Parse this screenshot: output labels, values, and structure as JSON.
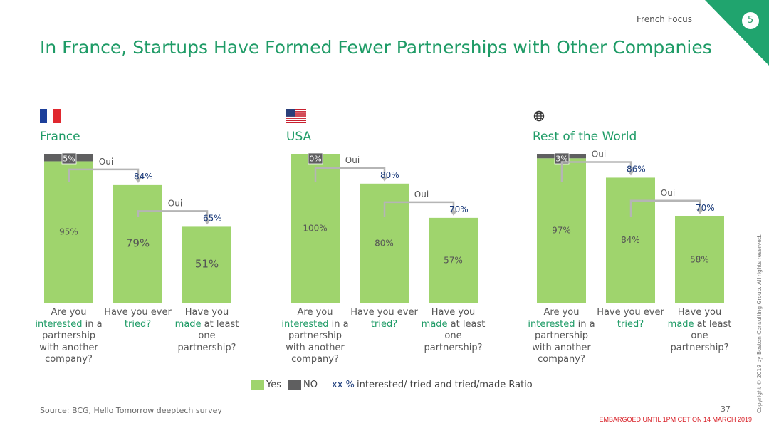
{
  "header": {
    "section": "French Focus",
    "page_badge": "5"
  },
  "title": "In France, Startups Have Formed Fewer Partnerships with Other Companies",
  "chart_data": [
    {
      "type": "bar",
      "region": "France",
      "flag": "france-flag",
      "categories": [
        "Are you interested in a partnership with another company?",
        "Have you ever tried?",
        "Have you made at least one partnership?"
      ],
      "series": [
        {
          "name": "Yes",
          "values": [
            95,
            79,
            51
          ]
        },
        {
          "name": "NO",
          "values": [
            5,
            0,
            0
          ]
        }
      ],
      "ratios": [
        84,
        65
      ],
      "ratio_prefix": "Oui",
      "value_labels": [
        "95%",
        "79%",
        "51%"
      ],
      "no_label": "5%",
      "ratio_labels": [
        "84%",
        "65%"
      ],
      "ylim": [
        0,
        100
      ]
    },
    {
      "type": "bar",
      "region": "USA",
      "flag": "usa-flag",
      "categories": [
        "Are you interested in a partnership with another company?",
        "Have you ever tried?",
        "Have you made at least one partnership?"
      ],
      "series": [
        {
          "name": "Yes",
          "values": [
            100,
            80,
            57
          ]
        },
        {
          "name": "NO",
          "values": [
            0,
            0,
            0
          ]
        }
      ],
      "ratios": [
        80,
        70
      ],
      "ratio_prefix": "Oui",
      "value_labels": [
        "100%",
        "80%",
        "57%"
      ],
      "no_label": "0%",
      "ratio_labels": [
        "80%",
        "70%"
      ],
      "ylim": [
        0,
        100
      ]
    },
    {
      "type": "bar",
      "region": "Rest of the World",
      "flag": "globe-icon",
      "categories": [
        "Are you interested in a partnership with another company?",
        "Have you ever tried?",
        "Have you made at least one partnership?"
      ],
      "series": [
        {
          "name": "Yes",
          "values": [
            97,
            84,
            58
          ]
        },
        {
          "name": "NO",
          "values": [
            3,
            0,
            0
          ]
        }
      ],
      "ratios": [
        86,
        70
      ],
      "ratio_prefix": "Oui",
      "value_labels": [
        "97%",
        "84%",
        "58%"
      ],
      "no_label": "3%",
      "ratio_labels": [
        "86%",
        "70%"
      ],
      "ylim": [
        0,
        100
      ]
    }
  ],
  "questions": {
    "q1": {
      "pre": "Are you",
      "hl": "interested",
      "post": "in a partnership with another company?"
    },
    "q2": {
      "pre": "Have you ever",
      "hl": "tried?",
      "post": ""
    },
    "q3": {
      "pre": "Have you",
      "hl": "made",
      "post": "at least one partnership?"
    }
  },
  "legend": {
    "yes": "Yes",
    "no": "NO",
    "xx": "xx %",
    "ratio_desc": "interested/ tried and tried/made Ratio"
  },
  "colors": {
    "yes": "#9fd46d",
    "no": "#5f5f60",
    "accent": "#1e9b66",
    "ratio_text": "#1a3a7a",
    "connector": "#b5b5b5"
  },
  "footer": {
    "source": "Source: BCG, Hello Tomorrow deeptech survey",
    "slide_number": "37",
    "embargo": "EMBARGOED UNTIL 1PM CET ON 14 MARCH 2019",
    "copyright": "Copyright © 2019 by Boston Consulting Group. All rights reserved."
  }
}
